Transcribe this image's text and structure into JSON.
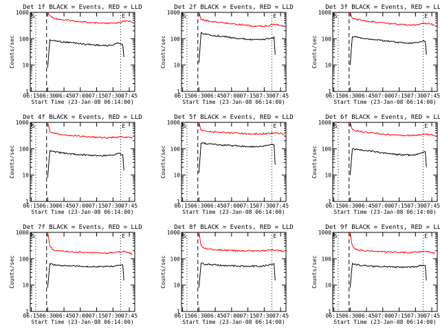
{
  "chart_data": [
    {
      "type": "line",
      "title": "Det 1f BLACK = Events, RED = LLD",
      "xlabel": "Start Time (23-Jan-08 06:14:00)",
      "ylabel": "Counts/sec",
      "y_scale": "log",
      "ylim": [
        1,
        1000
      ],
      "x_ticks": [
        "06:15",
        "06:30",
        "06:45",
        "07:00",
        "07:15",
        "07:30",
        "07:45"
      ],
      "y_ticks": [
        "1",
        "10",
        "100",
        "1000"
      ],
      "markers": [
        "S",
        "E"
      ],
      "series": [
        {
          "color": "#ff0000",
          "x": [
            "06:30",
            "06:32",
            "06:35",
            "06:40",
            "06:45",
            "06:50",
            "06:55",
            "07:00",
            "07:05",
            "07:10",
            "07:15",
            "07:20",
            "07:25",
            "07:30",
            "07:35",
            "07:40",
            "07:45",
            "07:48"
          ],
          "values": [
            1000,
            750,
            600,
            560,
            510,
            500,
            470,
            440,
            420,
            400,
            390,
            385,
            380,
            385,
            410,
            460,
            470,
            430
          ]
        },
        {
          "color": "#000000",
          "x": [
            "06:30",
            "06:32",
            "06:35",
            "06:40",
            "06:45",
            "06:50",
            "06:55",
            "07:00",
            "07:05",
            "07:10",
            "07:15",
            "07:20",
            "07:25",
            "07:30",
            "07:35",
            "07:39",
            "07:40"
          ],
          "values": [
            8,
            90,
            85,
            80,
            75,
            72,
            70,
            65,
            62,
            60,
            58,
            55,
            55,
            58,
            70,
            60,
            20
          ]
        }
      ]
    },
    {
      "type": "line",
      "title": "Det 2f BLACK = Events, RED = LLD",
      "xlabel": "Start Time (23-Jan-08 06:14:00)",
      "ylabel": "Counts/sec",
      "y_scale": "log",
      "ylim": [
        1,
        1000
      ],
      "x_ticks": [
        "06:15",
        "06:30",
        "06:45",
        "07:00",
        "07:15",
        "07:30",
        "07:45"
      ],
      "y_ticks": [
        "1",
        "10",
        "100",
        "1000"
      ],
      "markers": [
        "S",
        "E"
      ],
      "series": [
        {
          "color": "#ff0000",
          "x": [
            "06:30",
            "06:32",
            "06:35",
            "06:40",
            "06:45",
            "06:50",
            "06:55",
            "07:00",
            "07:05",
            "07:10",
            "07:15",
            "07:20",
            "07:25",
            "07:30",
            "07:35",
            "07:40",
            "07:45",
            "07:48"
          ],
          "values": [
            1000,
            550,
            500,
            470,
            430,
            410,
            390,
            360,
            350,
            340,
            320,
            300,
            290,
            300,
            330,
            350,
            320,
            290
          ]
        },
        {
          "color": "#000000",
          "x": [
            "06:30",
            "06:32",
            "06:35",
            "06:40",
            "06:45",
            "06:50",
            "06:55",
            "07:00",
            "07:05",
            "07:10",
            "07:15",
            "07:20",
            "07:25",
            "07:30",
            "07:35",
            "07:39",
            "07:40"
          ],
          "values": [
            12,
            160,
            150,
            140,
            130,
            125,
            118,
            110,
            105,
            100,
            95,
            92,
            90,
            95,
            105,
            110,
            25
          ]
        }
      ]
    },
    {
      "type": "line",
      "title": "Det 3f BLACK = Events, RED = LLD",
      "xlabel": "Start Time (23-Jan-08 06:14:00)",
      "ylabel": "Counts/sec",
      "y_scale": "log",
      "ylim": [
        1,
        1000
      ],
      "x_ticks": [
        "06:15",
        "06:30",
        "06:45",
        "07:00",
        "07:15",
        "07:30",
        "07:45"
      ],
      "y_ticks": [
        "1",
        "10",
        "100",
        "1000"
      ],
      "markers": [
        "S",
        "E"
      ],
      "series": [
        {
          "color": "#ff0000",
          "x": [
            "06:30",
            "06:32",
            "06:35",
            "06:40",
            "06:45",
            "06:50",
            "06:55",
            "07:00",
            "07:05",
            "07:10",
            "07:15",
            "07:20",
            "07:25",
            "07:30",
            "07:35",
            "07:40",
            "07:45",
            "07:48"
          ],
          "values": [
            1000,
            600,
            550,
            500,
            460,
            440,
            420,
            400,
            380,
            360,
            350,
            340,
            330,
            335,
            360,
            380,
            350,
            320
          ]
        },
        {
          "color": "#000000",
          "x": [
            "06:30",
            "06:32",
            "06:35",
            "06:40",
            "06:45",
            "06:50",
            "06:55",
            "07:00",
            "07:05",
            "07:10",
            "07:15",
            "07:20",
            "07:25",
            "07:30",
            "07:35",
            "07:39",
            "07:40"
          ],
          "values": [
            10,
            120,
            115,
            110,
            100,
            95,
            90,
            85,
            80,
            75,
            72,
            70,
            68,
            70,
            80,
            85,
            25
          ]
        }
      ]
    },
    {
      "type": "line",
      "title": "Det 4f BLACK = Events, RED = LLD",
      "xlabel": "Start Time (23-Jan-08 06:14:00)",
      "ylabel": "Counts/sec",
      "y_scale": "log",
      "ylim": [
        1,
        1000
      ],
      "x_ticks": [
        "06:15",
        "06:30",
        "06:45",
        "07:00",
        "07:15",
        "07:30",
        "07:45"
      ],
      "y_ticks": [
        "1",
        "10",
        "100",
        "1000"
      ],
      "markers": [
        "S",
        "E"
      ],
      "series": [
        {
          "color": "#ff0000",
          "x": [
            "06:30",
            "06:32",
            "06:35",
            "06:40",
            "06:45",
            "06:50",
            "06:55",
            "07:00",
            "07:05",
            "07:10",
            "07:15",
            "07:20",
            "07:25",
            "07:30",
            "07:35",
            "07:40",
            "07:45",
            "07:48"
          ],
          "values": [
            1000,
            450,
            400,
            360,
            330,
            320,
            310,
            300,
            290,
            280,
            270,
            265,
            260,
            265,
            275,
            280,
            270,
            250
          ]
        },
        {
          "color": "#000000",
          "x": [
            "06:30",
            "06:32",
            "06:35",
            "06:40",
            "06:45",
            "06:50",
            "06:55",
            "07:00",
            "07:05",
            "07:10",
            "07:15",
            "07:20",
            "07:25",
            "07:30",
            "07:35",
            "07:39",
            "07:40"
          ],
          "values": [
            8,
            80,
            78,
            72,
            68,
            65,
            62,
            60,
            58,
            56,
            55,
            54,
            55,
            58,
            65,
            60,
            15
          ]
        }
      ]
    },
    {
      "type": "line",
      "title": "Det 5f BLACK = Events, RED = LLD",
      "xlabel": "Start Time (23-Jan-08 06:14:00)",
      "ylabel": "Counts/sec",
      "y_scale": "log",
      "ylim": [
        1,
        1000
      ],
      "x_ticks": [
        "06:15",
        "06:30",
        "06:45",
        "07:00",
        "07:15",
        "07:30",
        "07:45"
      ],
      "y_ticks": [
        "1",
        "10",
        "100",
        "1000"
      ],
      "markers": [
        "S",
        "E"
      ],
      "series": [
        {
          "color": "#ff0000",
          "x": [
            "06:30",
            "06:32",
            "06:35",
            "06:40",
            "06:45",
            "06:50",
            "06:55",
            "07:00",
            "07:05",
            "07:10",
            "07:15",
            "07:20",
            "07:25",
            "07:30",
            "07:35",
            "07:40",
            "07:45",
            "07:48"
          ],
          "values": [
            1000,
            500,
            470,
            450,
            430,
            420,
            410,
            400,
            390,
            380,
            370,
            365,
            360,
            370,
            390,
            400,
            380,
            350
          ]
        },
        {
          "color": "#000000",
          "x": [
            "06:30",
            "06:32",
            "06:35",
            "06:40",
            "06:45",
            "06:50",
            "06:55",
            "07:00",
            "07:05",
            "07:10",
            "07:15",
            "07:20",
            "07:25",
            "07:30",
            "07:35",
            "07:39",
            "07:40"
          ],
          "values": [
            12,
            170,
            160,
            150,
            145,
            140,
            135,
            130,
            128,
            125,
            122,
            120,
            120,
            125,
            140,
            150,
            25
          ]
        }
      ]
    },
    {
      "type": "line",
      "title": "Det 6f BLACK = Events, RED = LLD",
      "xlabel": "Start Time (23-Jan-08 06:14:00)",
      "ylabel": "Counts/sec",
      "y_scale": "log",
      "ylim": [
        1,
        1000
      ],
      "x_ticks": [
        "06:15",
        "06:30",
        "06:45",
        "07:00",
        "07:15",
        "07:30",
        "07:45"
      ],
      "y_ticks": [
        "1",
        "10",
        "100",
        "1000"
      ],
      "markers": [
        "S",
        "E"
      ],
      "series": [
        {
          "color": "#ff0000",
          "x": [
            "06:30",
            "06:32",
            "06:35",
            "06:40",
            "06:45",
            "06:50",
            "06:55",
            "07:00",
            "07:05",
            "07:10",
            "07:15",
            "07:20",
            "07:25",
            "07:30",
            "07:35",
            "07:40",
            "07:45",
            "07:48"
          ],
          "values": [
            1000,
            550,
            480,
            450,
            420,
            400,
            380,
            360,
            350,
            340,
            330,
            320,
            315,
            320,
            340,
            360,
            340,
            310
          ]
        },
        {
          "color": "#000000",
          "x": [
            "06:30",
            "06:32",
            "06:35",
            "06:40",
            "06:45",
            "06:50",
            "06:55",
            "07:00",
            "07:05",
            "07:10",
            "07:15",
            "07:20",
            "07:25",
            "07:30",
            "07:35",
            "07:39",
            "07:40"
          ],
          "values": [
            10,
            100,
            95,
            90,
            85,
            80,
            75,
            70,
            65,
            62,
            60,
            58,
            57,
            60,
            70,
            75,
            20
          ]
        }
      ]
    },
    {
      "type": "line",
      "title": "Det 7f BLACK = Events, RED = LLD",
      "xlabel": "Start Time (23-Jan-08 06:14:00)",
      "ylabel": "Counts/sec",
      "y_scale": "log",
      "ylim": [
        1,
        1000
      ],
      "x_ticks": [
        "06:15",
        "06:30",
        "06:45",
        "07:00",
        "07:15",
        "07:30",
        "07:45"
      ],
      "y_ticks": [
        "1",
        "10",
        "100",
        "1000"
      ],
      "markers": [
        "S",
        "E"
      ],
      "series": [
        {
          "color": "#ff0000",
          "x": [
            "06:30",
            "06:32",
            "06:35",
            "06:40",
            "06:45",
            "06:50",
            "06:55",
            "07:00",
            "07:05",
            "07:10",
            "07:15",
            "07:20",
            "07:25",
            "07:30",
            "07:35",
            "07:40",
            "07:45",
            "07:48"
          ],
          "values": [
            1000,
            300,
            220,
            200,
            190,
            185,
            180,
            175,
            170,
            170,
            168,
            165,
            165,
            170,
            180,
            185,
            170,
            150
          ]
        },
        {
          "color": "#000000",
          "x": [
            "06:30",
            "06:32",
            "06:35",
            "06:40",
            "06:45",
            "06:50",
            "06:55",
            "07:00",
            "07:05",
            "07:10",
            "07:15",
            "07:20",
            "07:25",
            "07:30",
            "07:35",
            "07:39",
            "07:40"
          ],
          "values": [
            8,
            65,
            60,
            58,
            55,
            54,
            53,
            52,
            51,
            50,
            50,
            50,
            50,
            52,
            58,
            60,
            15
          ]
        }
      ]
    },
    {
      "type": "line",
      "title": "Det 8f BLACK = Events, RED = LLD",
      "xlabel": "Start Time (23-Jan-08 06:14:00)",
      "ylabel": "Counts/sec",
      "y_scale": "log",
      "ylim": [
        1,
        1000
      ],
      "x_ticks": [
        "06:15",
        "06:30",
        "06:45",
        "07:00",
        "07:15",
        "07:30",
        "07:45"
      ],
      "y_ticks": [
        "1",
        "10",
        "100",
        "1000"
      ],
      "markers": [
        "S",
        "E"
      ],
      "series": [
        {
          "color": "#ff0000",
          "x": [
            "06:30",
            "06:32",
            "06:35",
            "06:40",
            "06:45",
            "06:50",
            "06:55",
            "07:00",
            "07:05",
            "07:10",
            "07:15",
            "07:20",
            "07:25",
            "07:30",
            "07:35",
            "07:40",
            "07:45",
            "07:48"
          ],
          "values": [
            1000,
            320,
            250,
            230,
            220,
            215,
            210,
            205,
            200,
            200,
            198,
            195,
            195,
            200,
            210,
            215,
            200,
            180
          ]
        },
        {
          "color": "#000000",
          "x": [
            "06:30",
            "06:32",
            "06:35",
            "06:40",
            "06:45",
            "06:50",
            "06:55",
            "07:00",
            "07:05",
            "07:10",
            "07:15",
            "07:20",
            "07:25",
            "07:30",
            "07:35",
            "07:39",
            "07:40"
          ],
          "values": [
            8,
            70,
            62,
            60,
            58,
            56,
            55,
            54,
            53,
            52,
            52,
            52,
            52,
            54,
            60,
            62,
            15
          ]
        }
      ]
    },
    {
      "type": "line",
      "title": "Det 9f BLACK = Events, RED = LLD",
      "xlabel": "Start Time (23-Jan-08 06:14:00)",
      "ylabel": "Counts/sec",
      "y_scale": "log",
      "ylim": [
        1,
        1000
      ],
      "x_ticks": [
        "06:15",
        "06:30",
        "06:45",
        "07:00",
        "07:15",
        "07:30",
        "07:45"
      ],
      "y_ticks": [
        "1",
        "10",
        "100",
        "1000"
      ],
      "markers": [
        "S",
        "E"
      ],
      "series": [
        {
          "color": "#ff0000",
          "x": [
            "06:30",
            "06:32",
            "06:35",
            "06:40",
            "06:45",
            "06:50",
            "06:55",
            "07:00",
            "07:05",
            "07:10",
            "07:15",
            "07:20",
            "07:25",
            "07:30",
            "07:35",
            "07:40",
            "07:45",
            "07:48"
          ],
          "values": [
            1000,
            300,
            230,
            210,
            200,
            195,
            190,
            185,
            180,
            178,
            175,
            172,
            170,
            175,
            185,
            190,
            175,
            160
          ]
        },
        {
          "color": "#000000",
          "x": [
            "06:30",
            "06:32",
            "06:35",
            "06:40",
            "06:45",
            "06:50",
            "06:55",
            "07:00",
            "07:05",
            "07:10",
            "07:15",
            "07:20",
            "07:25",
            "07:30",
            "07:35",
            "07:39",
            "07:40"
          ],
          "values": [
            8,
            65,
            60,
            56,
            54,
            52,
            50,
            50,
            49,
            48,
            48,
            48,
            48,
            50,
            56,
            58,
            15
          ]
        }
      ]
    }
  ]
}
